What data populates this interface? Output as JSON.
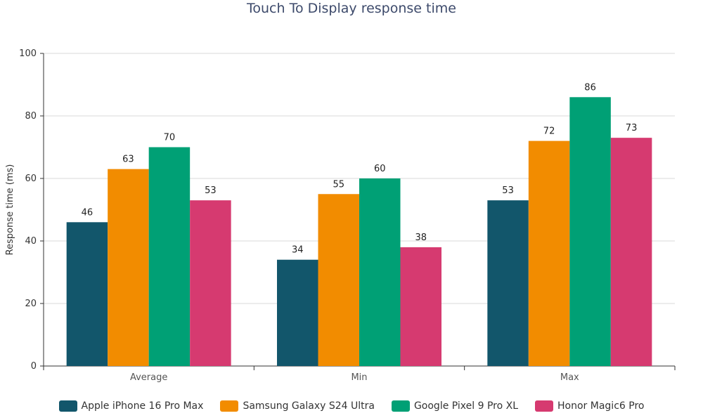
{
  "chart_data": {
    "type": "bar",
    "title": "Touch To Display response time",
    "xlabel": "",
    "ylabel": "Response time (ms)",
    "ylim": [
      0,
      100
    ],
    "yticks": [
      0,
      20,
      40,
      60,
      80,
      100
    ],
    "grid": true,
    "legend_position": "bottom",
    "categories": [
      "Average",
      "Min",
      "Max"
    ],
    "series": [
      {
        "name": "Apple iPhone 16 Pro Max",
        "color": "#12566b",
        "values": [
          46,
          34,
          53
        ]
      },
      {
        "name": "Samsung Galaxy S24 Ultra",
        "color": "#f28c00",
        "values": [
          63,
          55,
          72
        ]
      },
      {
        "name": "Google Pixel 9 Pro XL",
        "color": "#00a075",
        "values": [
          70,
          60,
          86
        ]
      },
      {
        "name": "Honor Magic6 Pro",
        "color": "#d63a70",
        "values": [
          53,
          38,
          73
        ]
      }
    ]
  }
}
